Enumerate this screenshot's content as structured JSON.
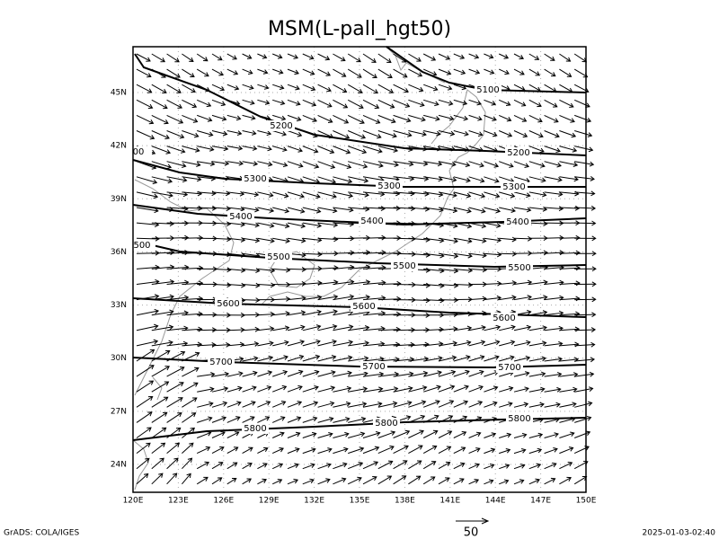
{
  "title": "MSM(L-pall_hgt50)",
  "map": {
    "lon_labels": [
      "120E",
      "123E",
      "126E",
      "129E",
      "132E",
      "135E",
      "138E",
      "141E",
      "144E",
      "147E",
      "150E"
    ],
    "lat_labels": [
      "24N",
      "27N",
      "30N",
      "33N",
      "36N",
      "39N",
      "42N",
      "45N"
    ],
    "contour_labels": [
      "5100",
      "5200",
      "5200",
      "5300",
      "5300",
      "5300",
      "5400",
      "5400",
      "5400",
      "500",
      "5500",
      "5500",
      "5500",
      "5600",
      "5600",
      "5600",
      "5700",
      "5700",
      "5700",
      "5800",
      "5800",
      "5800",
      "00"
    ]
  },
  "vector_scale": "50",
  "footer": {
    "left": "GrADS: COLA/IGES",
    "right": "2025-01-03-02:40"
  }
}
